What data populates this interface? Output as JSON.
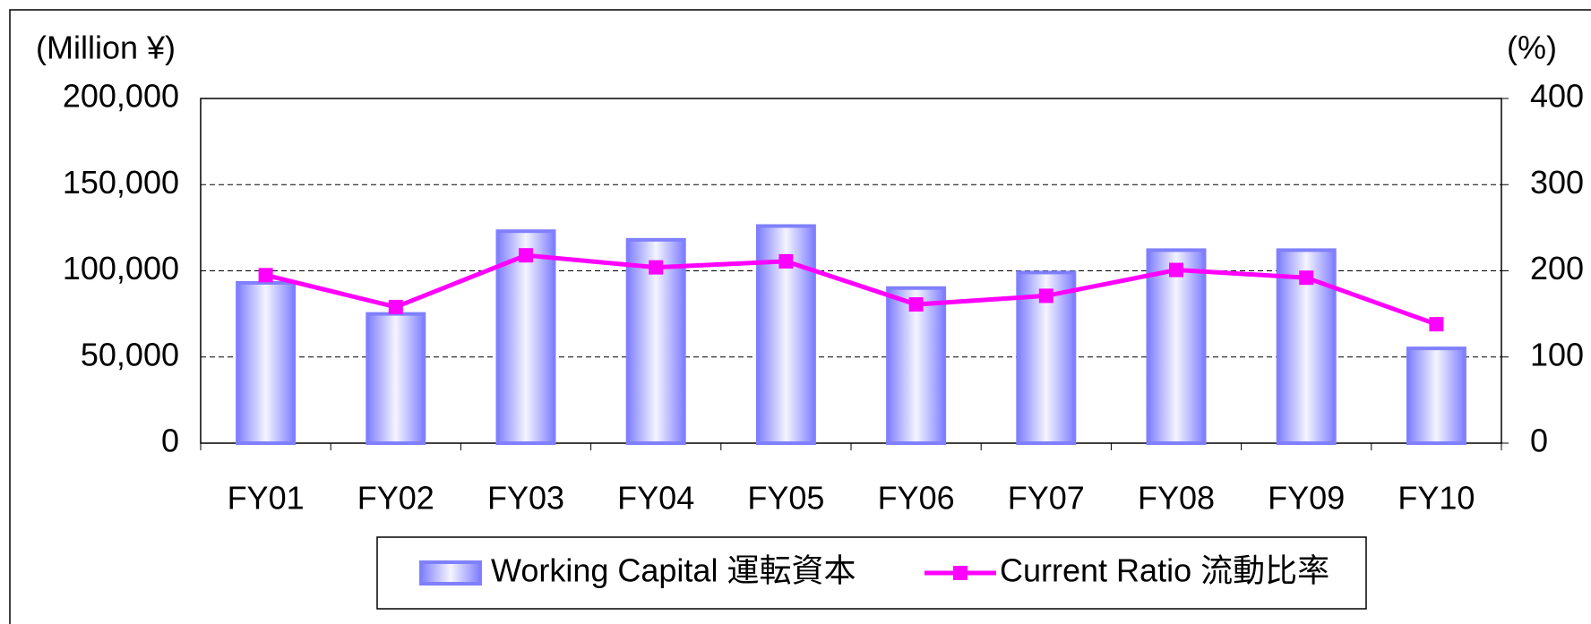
{
  "chart_data": {
    "type": "bar_line",
    "y_label": "(Million ¥)",
    "y2_label": "(%)",
    "categories": [
      "FY01",
      "FY02",
      "FY03",
      "FY04",
      "FY05",
      "FY06",
      "FY07",
      "FY08",
      "FY09",
      "FY10"
    ],
    "series": [
      {
        "name": "Working Capital 運転資本",
        "color": "#8080ff",
        "type": "bar",
        "values": [
          93000,
          75000,
          123000,
          118000,
          126000,
          90000,
          99000,
          112000,
          112000,
          55000
        ]
      },
      {
        "name": "Current Ratio 流動比率",
        "color": "#ff00ff",
        "type": "line",
        "axis": "y2",
        "values": [
          195,
          158,
          218,
          204,
          211,
          161,
          171,
          201,
          192,
          138
        ]
      }
    ],
    "ylim": [
      0,
      200000
    ],
    "yticks": [
      0,
      {
        "value": 50000,
        "label": "50,000"
      },
      {
        "value": 100000,
        "label": "100,000"
      },
      {
        "value": 150000,
        "label": "150,000"
      },
      {
        "value": 200000,
        "label": "200,000"
      }
    ],
    "y2lim": [
      0,
      400
    ],
    "y2ticks": [
      0,
      100,
      200,
      300,
      400
    ],
    "grid": true,
    "legend": "bottom"
  }
}
